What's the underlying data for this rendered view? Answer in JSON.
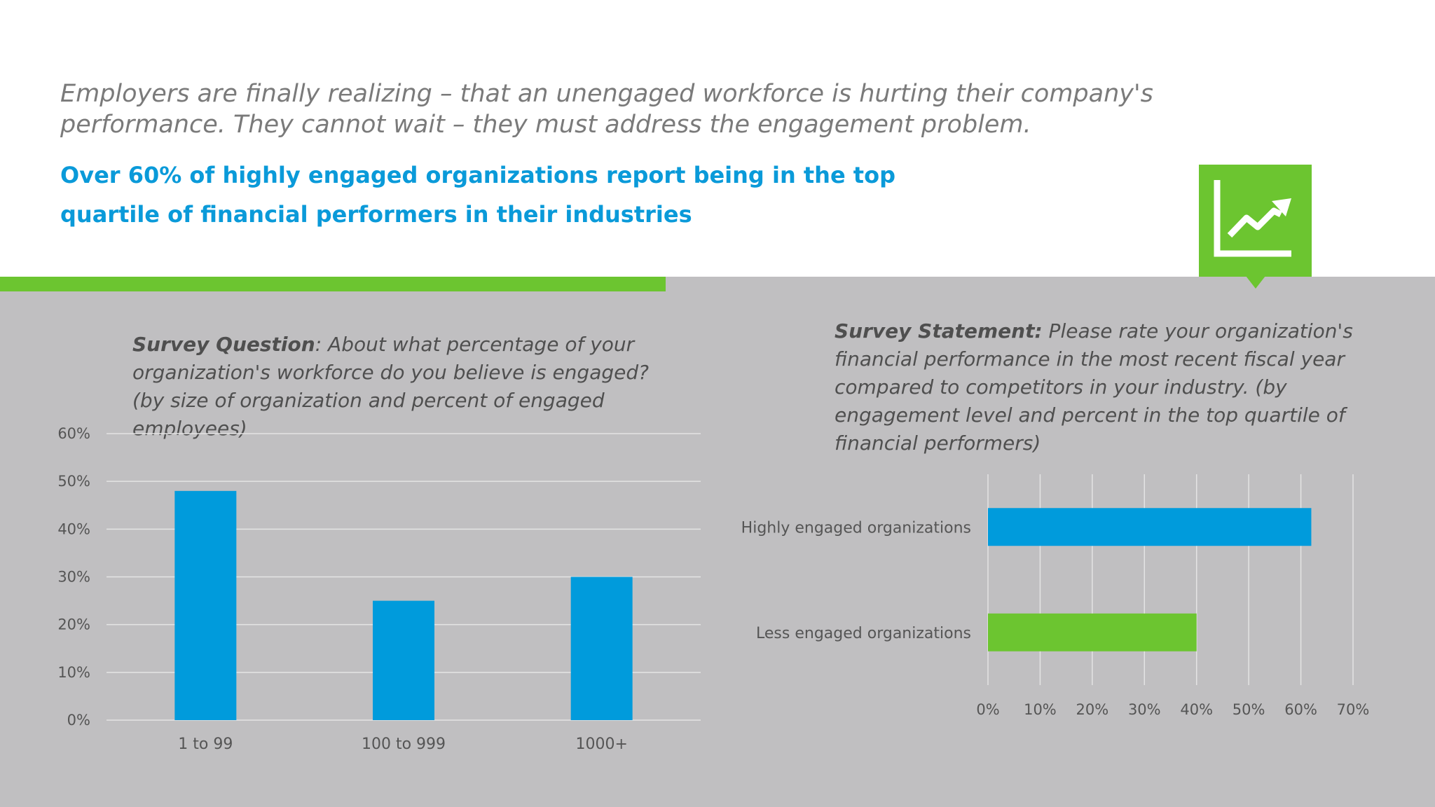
{
  "intro_text": "Employers are finally realizing – that an unengaged workforce is hurting their company's performance. They cannot wait – they must address the engagement problem.",
  "headline": "Over 60% of highly engaged organizations report being in the top quartile of financial performers in their industries",
  "badge_icon": "trending-up-chart-icon",
  "colors": {
    "blue": "#009bdc",
    "green": "#6cc530",
    "gray_bg": "#c0bfc1",
    "headline": "#0a9ad9"
  },
  "survey_question": {
    "lead": "Survey Question",
    "text": ": About what percentage of your organization's workforce do you believe is engaged? (by size of organization and percent of engaged employees)"
  },
  "survey_statement": {
    "lead": "Survey Statement:",
    "text": " Please rate your organization's financial performance in the most recent fiscal year compared to competitors in your industry. (by engagement level and percent in the top quartile of financial performers)"
  },
  "chart_data": [
    {
      "type": "bar",
      "orientation": "vertical",
      "categories": [
        "1 to 99",
        "100 to 999",
        "1000+"
      ],
      "values": [
        48,
        25,
        30
      ],
      "ylim": [
        0,
        60
      ],
      "yticks": [
        "0%",
        "10%",
        "20%",
        "30%",
        "40%",
        "50%",
        "60%"
      ],
      "grid": true,
      "color": "#009bdc"
    },
    {
      "type": "bar",
      "orientation": "horizontal",
      "categories": [
        "Highly engaged organizations",
        "Less engaged organizations"
      ],
      "values": [
        62,
        40
      ],
      "colors": [
        "#009bdc",
        "#6cc530"
      ],
      "xlim": [
        0,
        70
      ],
      "xticks": [
        "0%",
        "10%",
        "20%",
        "30%",
        "40%",
        "50%",
        "60%",
        "70%"
      ],
      "grid": true
    }
  ]
}
